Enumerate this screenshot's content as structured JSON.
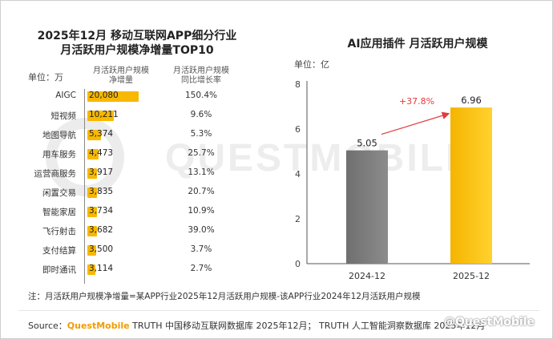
{
  "left_chart": {
    "title_line1": "2025年12月 移动互联网APP细分行业",
    "title_line2": "月活跃用户规模净增量TOP10",
    "unit": "单位：万",
    "col_increase": [
      "月活跃用户规模",
      "净增量"
    ],
    "col_rate": [
      "月活跃用户规模",
      "同比增长率"
    ]
  },
  "right_chart": {
    "title": "AI应用插件 月活跃用户规模",
    "unit": "单位：亿",
    "growth_label": "+37.8%"
  },
  "watermark": "QUESTMOBILE",
  "note": "注：月活跃用户规模净增量=某APP行业2025年12月活跃用户规模-该APP行业2024年12月活跃用户规模",
  "source": {
    "prefix": "Source：",
    "brand": "QuestMobile",
    "text": " TRUTH 中国移动互联网数据库 2025年12月；  TRUTH 人工智能洞察数据库 2025年12月"
  },
  "corner_logo": "@QuestMobile",
  "colors": {
    "accent_orange": "#f7b800",
    "bar_gray": "#7a7a7a",
    "bar_yellow": "#f8c100",
    "arrow_red": "#e23b3b"
  },
  "chart_data": [
    {
      "type": "bar",
      "orientation": "horizontal",
      "title": "2025年12月 移动互联网APP细分行业 月活跃用户规模净增量TOP10",
      "unit": "万",
      "categories": [
        "AIGC",
        "短视频",
        "地图导航",
        "用车服务",
        "运营商服务",
        "闲置交易",
        "智能家居",
        "飞行射击",
        "支付结算",
        "即时通讯"
      ],
      "series": [
        {
          "name": "月活跃用户规模净增量",
          "values": [
            20080,
            10211,
            5374,
            4473,
            3917,
            3835,
            3734,
            3682,
            3500,
            3114
          ]
        }
      ],
      "value_labels": [
        "20,080",
        "10,211",
        "5,374",
        "4,473",
        "3,917",
        "3,835",
        "3,734",
        "3,682",
        "3,500",
        "3,114"
      ],
      "yoy_growth": [
        "150.4%",
        "9.6%",
        "5.3%",
        "25.7%",
        "13.1%",
        "20.7%",
        "10.9%",
        "39.0%",
        "3.7%",
        "2.7%"
      ]
    },
    {
      "type": "bar",
      "orientation": "vertical",
      "title": "AI应用插件 月活跃用户规模",
      "unit": "亿",
      "categories": [
        "2024-12",
        "2025-12"
      ],
      "values": [
        5.05,
        6.96
      ],
      "value_labels": [
        "5.05",
        "6.96"
      ],
      "ylim": [
        0,
        8
      ],
      "yticks": [
        0,
        2,
        4,
        6,
        8
      ],
      "growth": "+37.8%",
      "grid": false
    }
  ]
}
